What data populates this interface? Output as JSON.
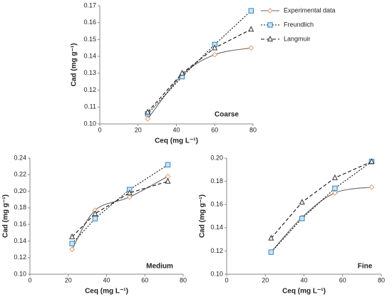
{
  "chart_data": [
    {
      "type": "line",
      "annotation": "Coarse",
      "xlabel": "Ceq (mg L⁻¹)",
      "ylabel": "Cad (mg g⁻¹)",
      "x": [
        25,
        43,
        60,
        79
      ],
      "series": [
        {
          "name": "Experimental data",
          "color": "#e39a72",
          "line_color": "#666666",
          "line_style": "solid",
          "smooth": true,
          "marker": "diamond",
          "values": [
            0.103,
            0.129,
            0.141,
            0.145
          ]
        },
        {
          "name": "Freundlich",
          "color": "#2e86c1",
          "line_color": "#111111",
          "line_style": "dotted",
          "smooth": false,
          "marker": "square",
          "values": [
            0.106,
            0.128,
            0.147,
            0.167
          ]
        },
        {
          "name": "Langmuir",
          "color": "#333333",
          "line_color": "#111111",
          "line_style": "dashed",
          "smooth": false,
          "marker": "triangle",
          "values": [
            0.107,
            0.13,
            0.145,
            0.156
          ]
        }
      ],
      "xlim": [
        0,
        80
      ],
      "xticks": [
        0,
        20,
        40,
        60,
        80
      ],
      "ylim": [
        0.1,
        0.17
      ],
      "yticks": [
        {
          "value": 0.1,
          "label": "0.10"
        },
        0.11,
        0.12,
        0.13,
        0.14,
        0.15,
        0.16,
        0.17
      ],
      "legend": "outside-right"
    },
    {
      "type": "line",
      "annotation": "Medium",
      "xlabel": "Ceq (mg L⁻¹)",
      "ylabel": "Cad (mg g⁻¹)",
      "x": [
        22,
        34,
        52,
        72
      ],
      "series": [
        {
          "color": "#e39a72",
          "line_color": "#666666",
          "line_style": "solid",
          "smooth": true,
          "marker": "diamond",
          "values": [
            0.13,
            0.177,
            0.193,
            0.218
          ]
        },
        {
          "color": "#2e86c1",
          "line_color": "#111111",
          "line_style": "dotted",
          "smooth": false,
          "marker": "square",
          "values": [
            0.137,
            0.167,
            0.202,
            0.232
          ]
        },
        {
          "color": "#333333",
          "line_color": "#111111",
          "line_style": "dashed",
          "smooth": false,
          "marker": "triangle",
          "values": [
            0.145,
            0.173,
            0.198,
            0.212
          ]
        }
      ],
      "xlim": [
        0,
        80
      ],
      "xticks": [
        0,
        20,
        40,
        60,
        80
      ],
      "ylim": [
        0.1,
        0.24
      ],
      "yticks": [
        {
          "value": 0.1,
          "label": "0.10"
        },
        0.12,
        0.14,
        0.16,
        0.18,
        {
          "value": 0.2,
          "label": "0.20"
        },
        0.22,
        0.24
      ]
    },
    {
      "type": "line",
      "annotation": "Fine",
      "xlabel": "Ceq (mg L⁻¹)",
      "ylabel": "Cad (mg g⁻¹)",
      "x": [
        23,
        39,
        56,
        75
      ],
      "series": [
        {
          "color": "#e39a72",
          "line_color": "#666666",
          "line_style": "solid",
          "smooth": true,
          "marker": "diamond",
          "values": [
            0.119,
            0.149,
            0.17,
            0.175
          ]
        },
        {
          "color": "#2e86c1",
          "line_color": "#111111",
          "line_style": "dotted",
          "smooth": false,
          "marker": "square",
          "values": [
            0.119,
            0.148,
            0.174,
            0.197
          ]
        },
        {
          "color": "#333333",
          "line_color": "#111111",
          "line_style": "dashed",
          "smooth": false,
          "marker": "triangle",
          "values": [
            0.131,
            0.162,
            0.183,
            0.197
          ]
        }
      ],
      "xlim": [
        0,
        80
      ],
      "xticks": [
        0,
        20,
        40,
        60,
        80
      ],
      "ylim": [
        0.1,
        0.2
      ],
      "yticks": [
        {
          "value": 0.1,
          "label": "0.10"
        },
        0.12,
        0.14,
        0.16,
        0.18,
        {
          "value": 0.2,
          "label": "0.20"
        }
      ]
    }
  ]
}
